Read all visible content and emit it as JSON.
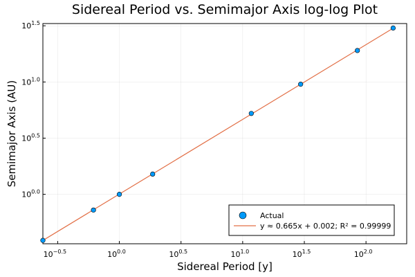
{
  "chart_data": {
    "type": "scatter",
    "title": "Sidereal Period vs. Semimajor Axis log-log Plot",
    "xlabel": "Sidereal Period [y]",
    "ylabel": "Semimajor Axis (AU)",
    "scale": "log10",
    "xlim_log10": [
      -0.62,
      2.33
    ],
    "ylim_log10": [
      -0.44,
      1.52
    ],
    "x_ticks": [
      {
        "base": "10",
        "exp": "−0.5",
        "value": -0.5
      },
      {
        "base": "10",
        "exp": "0.0",
        "value": 0.0
      },
      {
        "base": "10",
        "exp": "0.5",
        "value": 0.5
      },
      {
        "base": "10",
        "exp": "1.0",
        "value": 1.0
      },
      {
        "base": "10",
        "exp": "1.5",
        "value": 1.5
      },
      {
        "base": "10",
        "exp": "2.0",
        "value": 2.0
      }
    ],
    "y_ticks": [
      {
        "base": "10",
        "exp": "0.0",
        "value": 0.0
      },
      {
        "base": "10",
        "exp": "0.5",
        "value": 0.5
      },
      {
        "base": "10",
        "exp": "1.0",
        "value": 1.0
      },
      {
        "base": "10",
        "exp": "1.5",
        "value": 1.5
      }
    ],
    "grid": true,
    "legend_position": "bottom-right",
    "series": [
      {
        "name": "Actual",
        "kind": "scatter",
        "color": "#009af9",
        "x_log10": [
          -0.62,
          -0.21,
          0.0,
          0.27,
          1.07,
          1.47,
          1.93,
          2.22
        ],
        "y_log10": [
          -0.41,
          -0.14,
          0.0,
          0.18,
          0.72,
          0.98,
          1.28,
          1.48
        ]
      },
      {
        "name": "y ≈ 0.665x + 0.002; R² = 0.99999",
        "kind": "line",
        "color": "#e26f46",
        "slope": 0.665,
        "intercept": 0.002,
        "x_range_log10": [
          -0.62,
          2.22
        ]
      }
    ]
  }
}
